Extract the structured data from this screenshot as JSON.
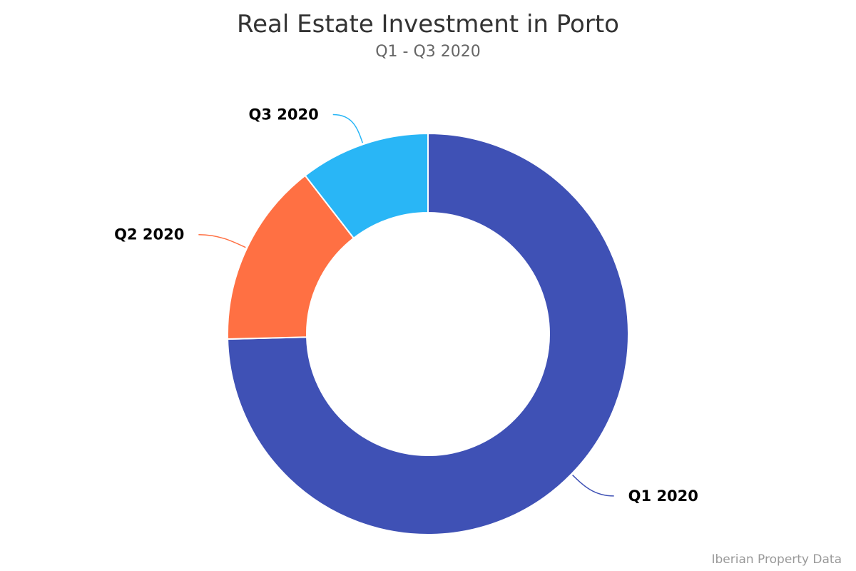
{
  "chart_data": {
    "type": "pie",
    "variant": "donut",
    "title": "Real Estate Investment in Porto",
    "subtitle": "Q1 - Q3 2020",
    "categories": [
      "Q1 2020",
      "Q2 2020",
      "Q3 2020"
    ],
    "values": [
      74.6,
      14.9,
      10.5
    ],
    "colors": [
      "#3F51B5",
      "#FF7043",
      "#29B6F6"
    ],
    "legend": "none",
    "data_labels": "category names with connector lines"
  },
  "credits": "Iberian Property Data"
}
